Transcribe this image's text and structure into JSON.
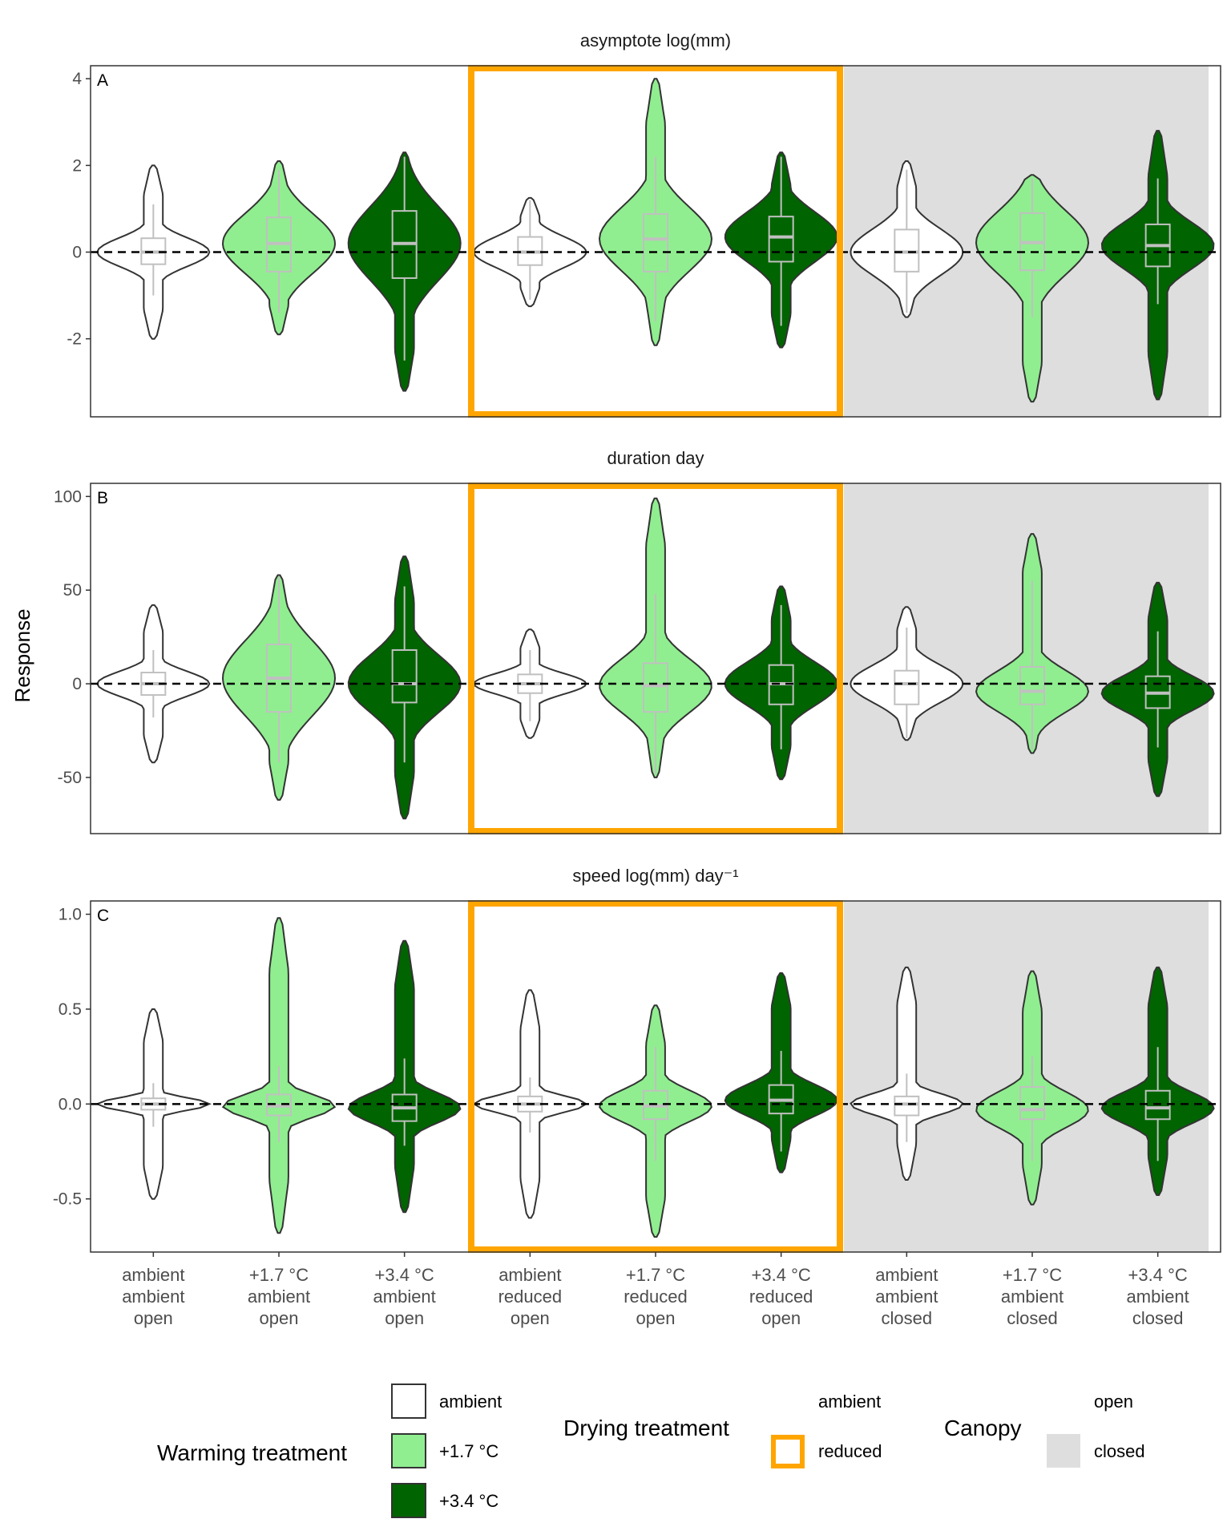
{
  "ylabel": "Response",
  "colors": {
    "warming": {
      "ambient": "#ffffff",
      "+1.7 °C": "#90ee90",
      "+3.4 °C": "#006400"
    },
    "outline": "#333333",
    "box": "#c0c0c0",
    "drying_reduced": "#ffa500",
    "canopy_closed": "#dedede",
    "zero_line": "#000000"
  },
  "categories": [
    {
      "warming": "ambient",
      "drying": "ambient",
      "canopy": "open"
    },
    {
      "warming": "+1.7 °C",
      "drying": "ambient",
      "canopy": "open"
    },
    {
      "warming": "+3.4 °C",
      "drying": "ambient",
      "canopy": "open"
    },
    {
      "warming": "ambient",
      "drying": "reduced",
      "canopy": "open"
    },
    {
      "warming": "+1.7 °C",
      "drying": "reduced",
      "canopy": "open"
    },
    {
      "warming": "+3.4 °C",
      "drying": "reduced",
      "canopy": "open"
    },
    {
      "warming": "ambient",
      "drying": "ambient",
      "canopy": "closed"
    },
    {
      "warming": "+1.7 °C",
      "drying": "ambient",
      "canopy": "closed"
    },
    {
      "warming": "+3.4 °C",
      "drying": "ambient",
      "canopy": "closed"
    }
  ],
  "chart_data": [
    {
      "type": "violin",
      "panel": "A",
      "title": "asymptote   log(mm)",
      "ylim": [
        -3.8,
        4.3
      ],
      "yticks": [
        4,
        2,
        0,
        -2
      ],
      "ytick_labels": [
        "4",
        "2",
        "0",
        "-2"
      ],
      "reference_line_y": 0,
      "series": [
        {
          "min": -2.0,
          "q1": -0.28,
          "median": 0.0,
          "q3": 0.32,
          "max": 2.0,
          "whisker_low": -1.0,
          "whisker_high": 1.1
        },
        {
          "min": -1.9,
          "q1": -0.45,
          "median": 0.2,
          "q3": 0.8,
          "max": 2.1,
          "whisker_low": -1.4,
          "whisker_high": 1.9
        },
        {
          "min": -3.2,
          "q1": -0.6,
          "median": 0.2,
          "q3": 0.95,
          "max": 2.3,
          "whisker_low": -2.5,
          "whisker_high": 2.2
        },
        {
          "min": -1.25,
          "q1": -0.3,
          "median": 0.0,
          "q3": 0.35,
          "max": 1.25,
          "whisker_low": -1.1,
          "whisker_high": 1.2
        },
        {
          "min": -2.15,
          "q1": -0.45,
          "median": 0.3,
          "q3": 0.88,
          "max": 4.0,
          "whisker_low": -1.6,
          "whisker_high": 2.2
        },
        {
          "min": -2.2,
          "q1": -0.22,
          "median": 0.35,
          "q3": 0.82,
          "max": 2.3,
          "whisker_low": -1.7,
          "whisker_high": 2.2
        },
        {
          "min": -1.5,
          "q1": -0.45,
          "median": 0.0,
          "q3": 0.52,
          "max": 2.1,
          "whisker_low": -1.4,
          "whisker_high": 1.9
        },
        {
          "min": -3.45,
          "q1": -0.42,
          "median": 0.22,
          "q3": 0.9,
          "max": 1.78,
          "whisker_low": -1.5,
          "whisker_high": 1.7
        },
        {
          "min": -3.4,
          "q1": -0.33,
          "median": 0.15,
          "q3": 0.64,
          "max": 2.8,
          "whisker_low": -1.2,
          "whisker_high": 1.7
        }
      ]
    },
    {
      "type": "violin",
      "panel": "B",
      "title": "duration   day",
      "ylim": [
        -80,
        107
      ],
      "yticks": [
        100,
        50,
        0,
        -50
      ],
      "ytick_labels": [
        "100",
        "50",
        "0",
        "-50"
      ],
      "reference_line_y": 0,
      "series": [
        {
          "min": -42,
          "q1": -6,
          "median": 0,
          "q3": 6,
          "max": 42,
          "whisker_low": -18,
          "whisker_high": 18
        },
        {
          "min": -62,
          "q1": -15,
          "median": 3,
          "q3": 21,
          "max": 58,
          "whisker_low": -42,
          "whisker_high": 57
        },
        {
          "min": -72,
          "q1": -10,
          "median": 0,
          "q3": 18,
          "max": 68,
          "whisker_low": -42,
          "whisker_high": 52
        },
        {
          "min": -29,
          "q1": -5,
          "median": 0,
          "q3": 5,
          "max": 29,
          "whisker_low": -20,
          "whisker_high": 18
        },
        {
          "min": -50,
          "q1": -15,
          "median": -1,
          "q3": 11,
          "max": 99,
          "whisker_low": -48,
          "whisker_high": 48
        },
        {
          "min": -51,
          "q1": -11,
          "median": 0,
          "q3": 10,
          "max": 52,
          "whisker_low": -35,
          "whisker_high": 42
        },
        {
          "min": -30,
          "q1": -11,
          "median": 0,
          "q3": 7,
          "max": 41,
          "whisker_low": -29,
          "whisker_high": 30
        },
        {
          "min": -37,
          "q1": -11,
          "median": -4,
          "q3": 9,
          "max": 80,
          "whisker_low": -35,
          "whisker_high": 55
        },
        {
          "min": -60,
          "q1": -13,
          "median": -5,
          "q3": 4,
          "max": 54,
          "whisker_low": -34,
          "whisker_high": 28
        }
      ]
    },
    {
      "type": "violin",
      "panel": "C",
      "title": "speed   log(mm) day⁻¹",
      "ylim": [
        -0.78,
        1.07
      ],
      "yticks": [
        1.0,
        0.5,
        0.0,
        -0.5
      ],
      "ytick_labels": [
        "1.0",
        "0.5",
        "0.0",
        "-0.5"
      ],
      "reference_line_y": 0,
      "series": [
        {
          "min": -0.5,
          "q1": -0.03,
          "median": 0.0,
          "q3": 0.03,
          "max": 0.5,
          "whisker_low": -0.12,
          "whisker_high": 0.11
        },
        {
          "min": -0.68,
          "q1": -0.06,
          "median": -0.01,
          "q3": 0.05,
          "max": 0.98,
          "whisker_low": -0.2,
          "whisker_high": 0.2
        },
        {
          "min": -0.57,
          "q1": -0.09,
          "median": -0.02,
          "q3": 0.05,
          "max": 0.86,
          "whisker_low": -0.22,
          "whisker_high": 0.24
        },
        {
          "min": -0.6,
          "q1": -0.04,
          "median": 0.0,
          "q3": 0.04,
          "max": 0.6,
          "whisker_low": -0.15,
          "whisker_high": 0.14
        },
        {
          "min": -0.7,
          "q1": -0.08,
          "median": -0.01,
          "q3": 0.07,
          "max": 0.52,
          "whisker_low": -0.3,
          "whisker_high": 0.3
        },
        {
          "min": -0.36,
          "q1": -0.05,
          "median": 0.02,
          "q3": 0.1,
          "max": 0.69,
          "whisker_low": -0.25,
          "whisker_high": 0.28
        },
        {
          "min": -0.4,
          "q1": -0.06,
          "median": 0.0,
          "q3": 0.04,
          "max": 0.72,
          "whisker_low": -0.2,
          "whisker_high": 0.16
        },
        {
          "min": -0.53,
          "q1": -0.08,
          "median": -0.03,
          "q3": 0.09,
          "max": 0.7,
          "whisker_low": -0.3,
          "whisker_high": 0.25
        },
        {
          "min": -0.48,
          "q1": -0.08,
          "median": -0.02,
          "q3": 0.07,
          "max": 0.72,
          "whisker_low": -0.3,
          "whisker_high": 0.3
        }
      ]
    }
  ],
  "legend": {
    "warming": {
      "title": "Warming treatment",
      "entries": [
        "ambient",
        "+1.7 °C",
        "+3.4 °C"
      ]
    },
    "drying": {
      "title": "Drying treatment",
      "entries": [
        "ambient",
        "reduced"
      ]
    },
    "canopy": {
      "title": "Canopy",
      "entries": [
        "open",
        "closed"
      ]
    }
  }
}
